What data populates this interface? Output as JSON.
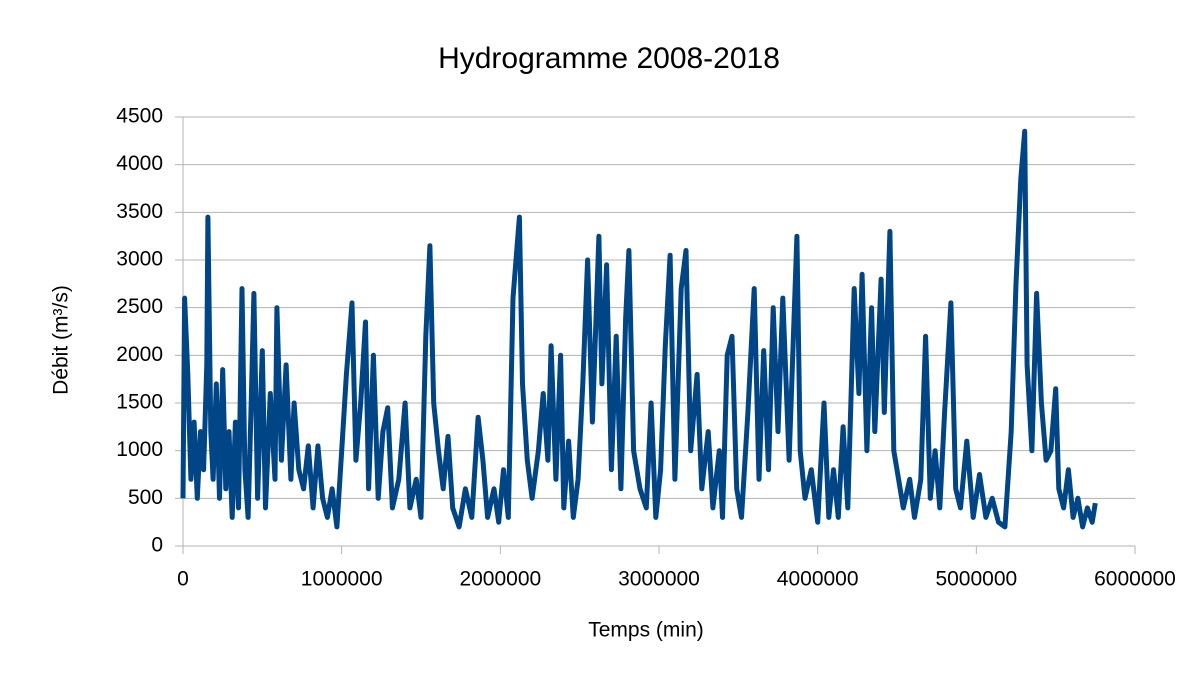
{
  "chart_data": {
    "type": "line",
    "title": "Hydrogramme 2008-2018",
    "x_label": "Temps (min)",
    "y_label": "Débit (m³/s)",
    "xlim": [
      0,
      6000000
    ],
    "xticks": [
      0,
      1000000,
      2000000,
      3000000,
      4000000,
      5000000,
      6000000
    ],
    "ylim": [
      0,
      4500
    ],
    "yticks": [
      0,
      500,
      1000,
      1500,
      2000,
      2500,
      3000,
      3500,
      4000,
      4500
    ],
    "grid": true,
    "series": [
      {
        "color": "#004586",
        "x": [
          0,
          10000,
          30000,
          50000,
          70000,
          90000,
          110000,
          130000,
          150000,
          157000,
          175000,
          190000,
          210000,
          230000,
          250000,
          270000,
          290000,
          310000,
          330000,
          350000,
          372000,
          390000,
          410000,
          430000,
          447000,
          470000,
          500000,
          520000,
          550000,
          580000,
          592000,
          620000,
          650000,
          680000,
          700000,
          730000,
          760000,
          790000,
          820000,
          850000,
          880000,
          910000,
          940000,
          970000,
          1000000,
          1030000,
          1065000,
          1090000,
          1120000,
          1150000,
          1170000,
          1200000,
          1230000,
          1260000,
          1290000,
          1320000,
          1360000,
          1400000,
          1430000,
          1470000,
          1500000,
          1530000,
          1556000,
          1580000,
          1610000,
          1640000,
          1670000,
          1700000,
          1740000,
          1780000,
          1820000,
          1860000,
          1890000,
          1920000,
          1960000,
          1990000,
          2020000,
          2050000,
          2080000,
          2120000,
          2140000,
          2170000,
          2200000,
          2240000,
          2270000,
          2300000,
          2320000,
          2350000,
          2380000,
          2400000,
          2430000,
          2460000,
          2490000,
          2520000,
          2550000,
          2580000,
          2621000,
          2640000,
          2670000,
          2700000,
          2730000,
          2760000,
          2790000,
          2810000,
          2840000,
          2880000,
          2920000,
          2950000,
          2980000,
          3010000,
          3040000,
          3070000,
          3100000,
          3140000,
          3170000,
          3200000,
          3240000,
          3270000,
          3310000,
          3340000,
          3380000,
          3400000,
          3430000,
          3460000,
          3490000,
          3520000,
          3560000,
          3600000,
          3630000,
          3660000,
          3690000,
          3720000,
          3750000,
          3780000,
          3820000,
          3869000,
          3890000,
          3920000,
          3960000,
          4000000,
          4040000,
          4070000,
          4100000,
          4130000,
          4160000,
          4190000,
          4230000,
          4260000,
          4280000,
          4310000,
          4340000,
          4360000,
          4400000,
          4420000,
          4455000,
          4480000,
          4510000,
          4540000,
          4580000,
          4610000,
          4650000,
          4680000,
          4710000,
          4740000,
          4770000,
          4800000,
          4840000,
          4870000,
          4900000,
          4940000,
          4980000,
          5020000,
          5060000,
          5100000,
          5140000,
          5180000,
          5220000,
          5250000,
          5280000,
          5305000,
          5320000,
          5350000,
          5380000,
          5410000,
          5440000,
          5470000,
          5500000,
          5520000,
          5550000,
          5580000,
          5610000,
          5640000,
          5670000,
          5700000,
          5730000,
          5750000
        ],
        "values": [
          500,
          2600,
          1800,
          700,
          1300,
          500,
          1200,
          800,
          1900,
          3450,
          1200,
          700,
          1700,
          500,
          1850,
          600,
          1200,
          300,
          1300,
          400,
          2700,
          800,
          300,
          1500,
          2650,
          500,
          2050,
          400,
          1600,
          700,
          2500,
          900,
          1900,
          700,
          1500,
          800,
          600,
          1050,
          400,
          1050,
          500,
          300,
          600,
          200,
          1000,
          1800,
          2550,
          900,
          1500,
          2350,
          600,
          2000,
          500,
          1200,
          1450,
          400,
          700,
          1500,
          400,
          700,
          300,
          2200,
          3150,
          1500,
          1000,
          600,
          1150,
          400,
          200,
          600,
          300,
          1350,
          900,
          300,
          600,
          250,
          800,
          300,
          2600,
          3450,
          1700,
          900,
          500,
          1000,
          1600,
          900,
          2100,
          700,
          2000,
          400,
          1100,
          300,
          700,
          1700,
          3000,
          1300,
          3250,
          1700,
          2950,
          800,
          2200,
          600,
          2400,
          3100,
          1000,
          600,
          400,
          1500,
          300,
          800,
          2100,
          3050,
          700,
          2700,
          3100,
          1000,
          1800,
          600,
          1200,
          400,
          1000,
          300,
          2000,
          2200,
          600,
          300,
          1400,
          2700,
          700,
          2050,
          800,
          2500,
          1200,
          2600,
          900,
          3250,
          1000,
          500,
          800,
          250,
          1500,
          300,
          800,
          300,
          1250,
          400,
          2700,
          1600,
          2850,
          1000,
          2500,
          1200,
          2800,
          1400,
          3300,
          1000,
          700,
          400,
          700,
          300,
          700,
          2200,
          500,
          1000,
          400,
          1400,
          2550,
          600,
          400,
          1100,
          300,
          750,
          300,
          500,
          250,
          200,
          1200,
          2750,
          3850,
          4350,
          1900,
          1000,
          2650,
          1500,
          900,
          1000,
          1650,
          600,
          400,
          800,
          300,
          500,
          200,
          400,
          250,
          450
        ]
      }
    ]
  }
}
